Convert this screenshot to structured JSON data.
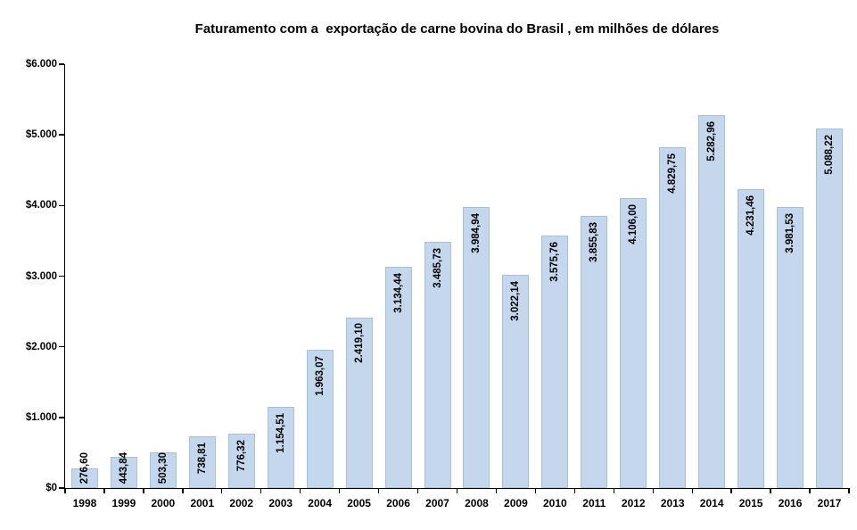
{
  "chart_data": {
    "type": "bar",
    "title": "Faturamento com a  exportação de carne bovina do Brasil , em milhões de dólares",
    "categories": [
      "1998",
      "1999",
      "2000",
      "2001",
      "2002",
      "2003",
      "2004",
      "2005",
      "2006",
      "2007",
      "2008",
      "2009",
      "2010",
      "2011",
      "2012",
      "2013",
      "2014",
      "2015",
      "2016",
      "2017"
    ],
    "values": [
      276.6,
      443.84,
      503.3,
      738.81,
      776.32,
      1154.51,
      1963.07,
      2419.1,
      3134.44,
      3485.73,
      3984.94,
      3022.14,
      3575.76,
      3855.83,
      4106.0,
      4829.75,
      5282.96,
      4231.46,
      3981.53,
      5088.22
    ],
    "data_labels": [
      "276,60",
      "443,84",
      "503,30",
      "738,81",
      "776,32",
      "1.154,51",
      "1.963,07",
      "2.419,10",
      "3.134,44",
      "3.485,73",
      "3.984,94",
      "3.022,14",
      "3.575,76",
      "3.855,83",
      "4.106,00",
      "4.829,75",
      "5.282,96",
      "4.231,46",
      "3.981,53",
      "5.088,22"
    ],
    "xlabel": "",
    "ylabel": "",
    "ylim": [
      0,
      6000
    ],
    "y_ticks": [
      "$0",
      "$1.000",
      "$2.000",
      "$3.000",
      "$4.000",
      "$5.000",
      "$6.000"
    ],
    "grid": false,
    "legend": "none",
    "colors": {
      "bar_fill": "#C5D7ED",
      "bar_border": "#A8BFDC",
      "axis": "#000000",
      "text": "#000000"
    }
  }
}
